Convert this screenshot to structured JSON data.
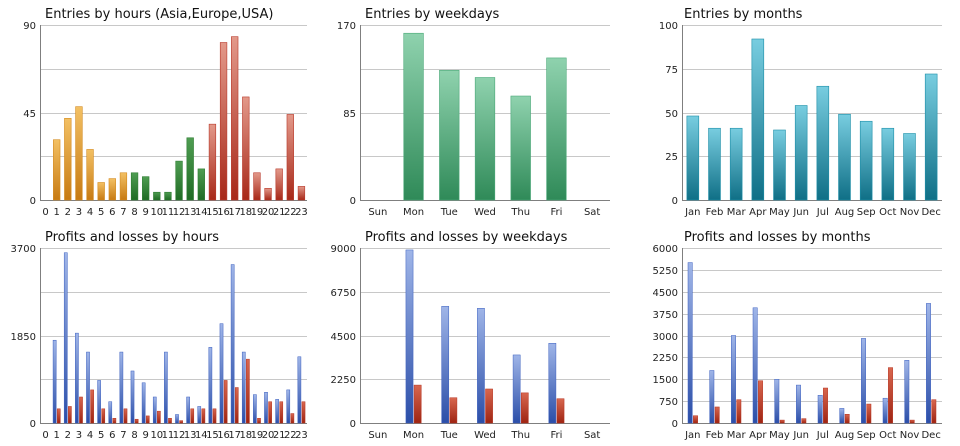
{
  "colors": {
    "hours_morning": "#d48a1e",
    "hours_day": "#2e7d32",
    "hours_evening": "#b8392b",
    "weekdays": "#4aa878",
    "months": "#1e8fa8",
    "profit": "#3b5fbf",
    "loss": "#b5311f"
  },
  "chart_data": [
    {
      "type": "bar",
      "title": "Entries by hours (Asia,Europe,USA)",
      "categories": [
        "0",
        "1",
        "2",
        "3",
        "4",
        "5",
        "6",
        "7",
        "8",
        "9",
        "10",
        "11",
        "12",
        "13",
        "14",
        "15",
        "16",
        "17",
        "18",
        "19",
        "20",
        "21",
        "22",
        "23"
      ],
      "values": [
        0,
        31,
        42,
        48,
        26,
        9,
        11,
        14,
        14,
        12,
        4,
        4,
        20,
        32,
        16,
        39,
        81,
        84,
        53,
        14,
        6,
        16,
        44,
        7
      ],
      "bar_colors": [
        "hours_morning",
        "hours_morning",
        "hours_morning",
        "hours_morning",
        "hours_morning",
        "hours_morning",
        "hours_morning",
        "hours_morning",
        "hours_day",
        "hours_day",
        "hours_day",
        "hours_day",
        "hours_day",
        "hours_day",
        "hours_day",
        "hours_evening",
        "hours_evening",
        "hours_evening",
        "hours_evening",
        "hours_evening",
        "hours_evening",
        "hours_evening",
        "hours_evening",
        "hours_evening"
      ],
      "ylim": [
        0,
        90
      ],
      "yticks": [
        "0",
        "45",
        "90"
      ],
      "grid": true
    },
    {
      "type": "bar",
      "title": "Entries by weekdays",
      "categories": [
        "Sun",
        "Mon",
        "Tue",
        "Wed",
        "Thu",
        "Fri",
        "Sat"
      ],
      "values": [
        0,
        162,
        126,
        119,
        101,
        138,
        0
      ],
      "color": "weekdays",
      "ylim": [
        0,
        170
      ],
      "yticks": [
        "0",
        "85",
        "170"
      ],
      "grid": true
    },
    {
      "type": "bar",
      "title": "Entries by months",
      "categories": [
        "Jan",
        "Feb",
        "Mar",
        "Apr",
        "May",
        "Jun",
        "Jul",
        "Aug",
        "Sep",
        "Oct",
        "Nov",
        "Dec"
      ],
      "values": [
        48,
        41,
        41,
        92,
        40,
        54,
        65,
        49,
        45,
        41,
        38,
        72
      ],
      "color": "months",
      "ylim": [
        0,
        100
      ],
      "yticks": [
        "0",
        "25",
        "50",
        "75",
        "100"
      ],
      "grid": true
    },
    {
      "type": "bar",
      "title": "Profits and losses by hours",
      "categories": [
        "0",
        "1",
        "2",
        "3",
        "4",
        "5",
        "6",
        "7",
        "8",
        "9",
        "10",
        "11",
        "12",
        "13",
        "14",
        "15",
        "16",
        "17",
        "18",
        "19",
        "20",
        "21",
        "22",
        "23"
      ],
      "series": [
        {
          "color": "profit",
          "values": [
            0,
            1750,
            3600,
            1900,
            1500,
            900,
            450,
            1500,
            1100,
            850,
            550,
            1500,
            180,
            550,
            350,
            1600,
            2100,
            3350,
            1500,
            600,
            650,
            500,
            700,
            1400
          ]
        },
        {
          "color": "loss",
          "values": [
            0,
            300,
            350,
            550,
            700,
            300,
            100,
            300,
            80,
            150,
            250,
            100,
            50,
            300,
            300,
            300,
            900,
            750,
            1350,
            100,
            450,
            450,
            200,
            450
          ]
        }
      ],
      "ylim": [
        0,
        3700
      ],
      "yticks": [
        "0",
        "1850",
        "3700"
      ],
      "grid": true
    },
    {
      "type": "bar",
      "title": "Profits and losses by weekdays",
      "categories": [
        "Sun",
        "Mon",
        "Tue",
        "Wed",
        "Thu",
        "Fri",
        "Sat"
      ],
      "series": [
        {
          "color": "profit",
          "values": [
            0,
            8900,
            6000,
            5900,
            3500,
            4100,
            0
          ]
        },
        {
          "color": "loss",
          "values": [
            0,
            1950,
            1300,
            1750,
            1550,
            1250,
            0
          ]
        }
      ],
      "ylim": [
        0,
        9000
      ],
      "yticks": [
        "0",
        "2250",
        "4500",
        "6750",
        "9000"
      ],
      "grid": true
    },
    {
      "type": "bar",
      "title": "Profits and losses by months",
      "categories": [
        "Jan",
        "Feb",
        "Mar",
        "Apr",
        "May",
        "Jun",
        "Jul",
        "Aug",
        "Sep",
        "Oct",
        "Nov",
        "Dec"
      ],
      "series": [
        {
          "color": "profit",
          "values": [
            5500,
            1800,
            3000,
            3950,
            1500,
            1300,
            950,
            500,
            2900,
            850,
            2150,
            4100
          ]
        },
        {
          "color": "loss",
          "values": [
            250,
            550,
            800,
            1450,
            100,
            150,
            1200,
            300,
            650,
            1900,
            100,
            800
          ]
        }
      ],
      "ylim": [
        0,
        6000
      ],
      "yticks": [
        "0",
        "750",
        "1500",
        "2250",
        "3000",
        "3750",
        "4500",
        "5250",
        "6000"
      ],
      "grid": true
    }
  ]
}
